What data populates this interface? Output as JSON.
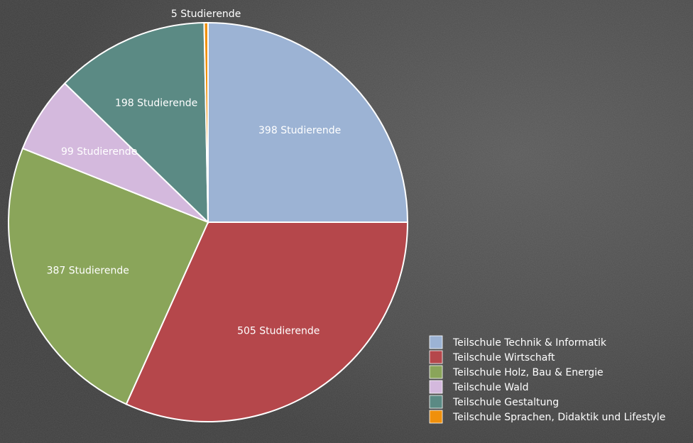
{
  "chart_data": {
    "type": "pie",
    "categories": [
      "Teilschule Technik & Informatik",
      "Teilschule Wirtschaft",
      "Teilschule Holz, Bau & Energie",
      "Teilschule Wald",
      "Teilschule Gestaltung",
      "Teilschule Sprachen, Didaktik und Lifestyle"
    ],
    "values": [
      398,
      505,
      387,
      99,
      198,
      5
    ],
    "value_labels": [
      "398 Studierende",
      "505 Studierende",
      "387 Studierende",
      "99 Studierende",
      "198 Studierende",
      "5 Studierende"
    ],
    "colors": [
      "#9cb3d4",
      "#b5474b",
      "#8aa55a",
      "#d4b9dd",
      "#5b8a84",
      "#f0900c"
    ]
  }
}
